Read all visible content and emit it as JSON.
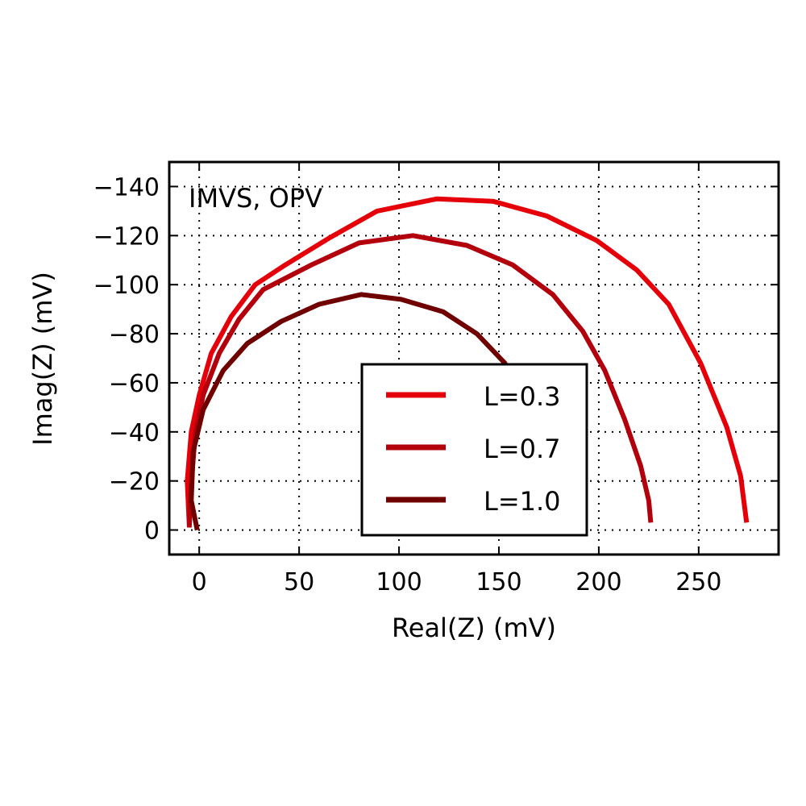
{
  "chart_data": {
    "type": "line",
    "annotation": "IMVS, OPV",
    "xlabel": "Real(Z) (mV)",
    "ylabel": "Imag(Z) (mV)",
    "xlim": [
      -15,
      290
    ],
    "ylim": [
      10,
      -150
    ],
    "y_inverted": true,
    "grid": true,
    "legend_placement": "lower-center",
    "x_ticks": [
      0,
      50,
      100,
      150,
      200,
      250
    ],
    "x_tick_labels": [
      "0",
      "50",
      "100",
      "150",
      "200",
      "250"
    ],
    "y_ticks": [
      0,
      -20,
      -40,
      -60,
      -80,
      -100,
      -120,
      -140
    ],
    "y_tick_labels": [
      "0",
      "−20",
      "−40",
      "−60",
      "−80",
      "−100",
      "−120",
      "−140"
    ],
    "series": [
      {
        "name": "L=0.3",
        "color": "#e50009",
        "x": [
          -5,
          -6,
          -4,
          0,
          6,
          16,
          28,
          43,
          65,
          89,
          119,
          147,
          174,
          199,
          219,
          235,
          251,
          264,
          271,
          274
        ],
        "y": [
          -2,
          -20,
          -40,
          -55,
          -72,
          -87,
          -100,
          -108,
          -119,
          -130,
          -135,
          -134,
          -128,
          -118,
          -106,
          -92,
          -68,
          -42,
          -22,
          -3
        ]
      },
      {
        "name": "L=0.7",
        "color": "#b2000c",
        "x": [
          -5,
          -4,
          -2,
          2,
          10,
          20,
          32,
          56,
          80,
          107,
          134,
          157,
          177,
          192,
          203,
          213,
          221,
          225,
          226
        ],
        "y": [
          -1,
          -19,
          -39,
          -55,
          -72,
          -86,
          -98,
          -108,
          -117,
          -120,
          -116,
          -108,
          -96,
          -81,
          -65,
          -45,
          -26,
          -12,
          -3
        ]
      },
      {
        "name": "L=1.0",
        "color": "#700000",
        "x": [
          -1,
          -4,
          -3,
          2,
          12,
          24,
          41,
          60,
          81,
          101,
          122,
          139,
          153,
          162
        ],
        "y": [
          0,
          -12,
          -32,
          -49,
          -65,
          -76,
          -85,
          -92,
          -96,
          -94,
          -89,
          -80,
          -68,
          -55
        ]
      }
    ]
  }
}
